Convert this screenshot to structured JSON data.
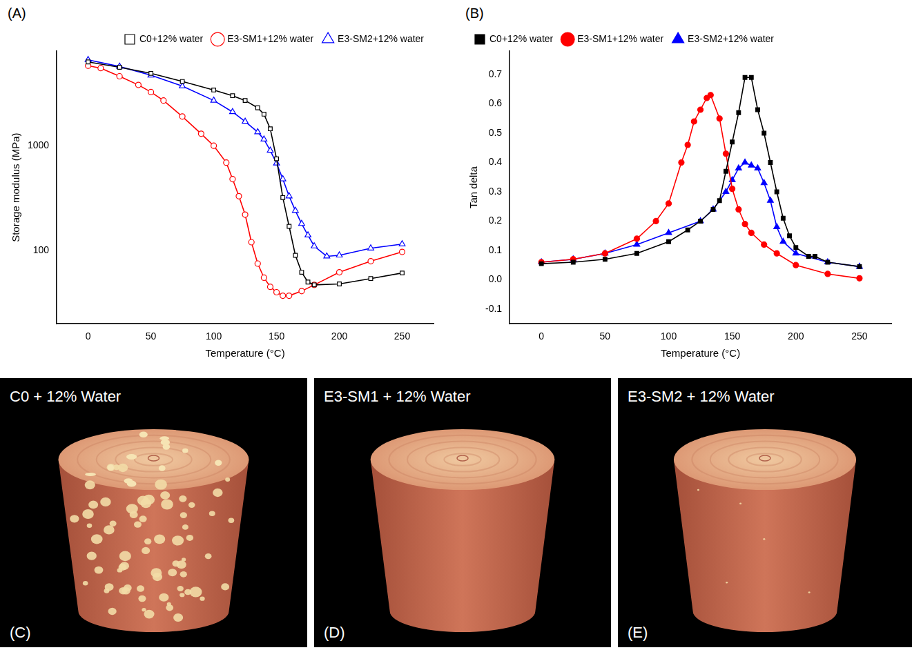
{
  "chart_data": [
    {
      "type": "line",
      "annotation": "(A)",
      "x_label": "Temperature (°C)",
      "y_label": "Storage modulus (MPa)",
      "log": "y",
      "grid": false,
      "legend": "top right",
      "xlim": [
        -25,
        275
      ],
      "xticks": [
        0,
        50,
        100,
        150,
        200,
        250
      ],
      "ylim": [
        20,
        8000
      ],
      "yticks": [
        100,
        1000
      ],
      "series": [
        {
          "name": "C0+12% water",
          "color": "#000000",
          "marker": "open_square",
          "line_style": "solid",
          "x": [
            0,
            25,
            50,
            75,
            100,
            115,
            125,
            135,
            140,
            145,
            150,
            155,
            160,
            165,
            170,
            175,
            180,
            200,
            225,
            250
          ],
          "values": [
            6300,
            5600,
            4900,
            4100,
            3400,
            3000,
            2700,
            2300,
            2000,
            1450,
            750,
            320,
            170,
            90,
            62,
            50,
            47,
            48,
            54,
            61
          ]
        },
        {
          "name": "E3-SM1+12% water",
          "color": "#ff0000",
          "marker": "open_circle",
          "line_style": "solid",
          "x": [
            0,
            10,
            25,
            40,
            50,
            60,
            75,
            90,
            100,
            110,
            115,
            120,
            125,
            130,
            135,
            140,
            145,
            150,
            155,
            160,
            170,
            180,
            200,
            225,
            250
          ],
          "values": [
            5800,
            5500,
            4600,
            3800,
            3250,
            2700,
            1900,
            1300,
            1000,
            690,
            480,
            330,
            220,
            120,
            75,
            55,
            45,
            40,
            37,
            37,
            41,
            47,
            62,
            79,
            97
          ]
        },
        {
          "name": "E3-SM2+12% water",
          "color": "#0000ff",
          "marker": "open_triangle",
          "line_style": "solid",
          "x": [
            0,
            25,
            50,
            75,
            100,
            115,
            125,
            135,
            140,
            145,
            150,
            155,
            160,
            165,
            170,
            175,
            180,
            190,
            200,
            225,
            250
          ],
          "values": [
            6600,
            5700,
            4700,
            3700,
            2700,
            2100,
            1700,
            1350,
            1150,
            900,
            680,
            480,
            330,
            240,
            180,
            140,
            110,
            88,
            90,
            105,
            115
          ]
        }
      ]
    },
    {
      "type": "line",
      "annotation": "(B)",
      "x_label": "Temperature (°C)",
      "y_label": "Tan delta",
      "grid": false,
      "legend": "top left",
      "xlim": [
        -25,
        275
      ],
      "xticks": [
        0,
        50,
        100,
        150,
        200,
        250
      ],
      "ylim": [
        -0.15,
        0.78
      ],
      "yticks": [
        -0.1,
        {
          "value": 0,
          "label": "0.0"
        },
        0.1,
        0.2,
        0.3,
        0.4,
        0.5,
        0.6,
        0.7
      ],
      "series": [
        {
          "name": "C0+12% water",
          "color": "#000000",
          "marker": "square",
          "line_style": "solid",
          "x": [
            0,
            25,
            50,
            75,
            100,
            115,
            125,
            135,
            140,
            145,
            150,
            155,
            160,
            165,
            170,
            175,
            180,
            185,
            190,
            195,
            200,
            210,
            215,
            225,
            250
          ],
          "values": [
            0.055,
            0.06,
            0.07,
            0.09,
            0.13,
            0.17,
            0.2,
            0.24,
            0.27,
            0.37,
            0.47,
            0.57,
            0.69,
            0.69,
            0.58,
            0.5,
            0.4,
            0.3,
            0.21,
            0.15,
            0.11,
            0.08,
            0.08,
            0.06,
            0.045
          ]
        },
        {
          "name": "E3-SM1+12% water",
          "color": "#ff0000",
          "marker": "circle",
          "line_style": "solid",
          "x": [
            0,
            25,
            50,
            75,
            90,
            100,
            110,
            115,
            120,
            125,
            130,
            133,
            140,
            145,
            150,
            155,
            160,
            165,
            175,
            185,
            200,
            225,
            250
          ],
          "values": [
            0.06,
            0.07,
            0.09,
            0.14,
            0.2,
            0.26,
            0.4,
            0.46,
            0.54,
            0.58,
            0.62,
            0.63,
            0.55,
            0.43,
            0.31,
            0.24,
            0.19,
            0.16,
            0.12,
            0.09,
            0.05,
            0.02,
            0.005
          ]
        },
        {
          "name": "E3-SM2+12% water",
          "color": "#0000ff",
          "marker": "triangle",
          "line_style": "solid",
          "x": [
            0,
            25,
            50,
            75,
            100,
            125,
            135,
            145,
            150,
            155,
            160,
            165,
            170,
            175,
            180,
            185,
            190,
            200,
            225,
            250
          ],
          "values": [
            0.06,
            0.07,
            0.09,
            0.12,
            0.16,
            0.2,
            0.24,
            0.3,
            0.34,
            0.38,
            0.4,
            0.39,
            0.38,
            0.33,
            0.27,
            0.18,
            0.13,
            0.09,
            0.06,
            0.045
          ]
        }
      ]
    }
  ],
  "images": [
    {
      "title": "C0 + 12% Water",
      "label": "(C)"
    },
    {
      "title": "E3-SM1 + 12% Water",
      "label": "(D)"
    },
    {
      "title": "E3-SM2 + 12% Water",
      "label": "(E)"
    }
  ]
}
